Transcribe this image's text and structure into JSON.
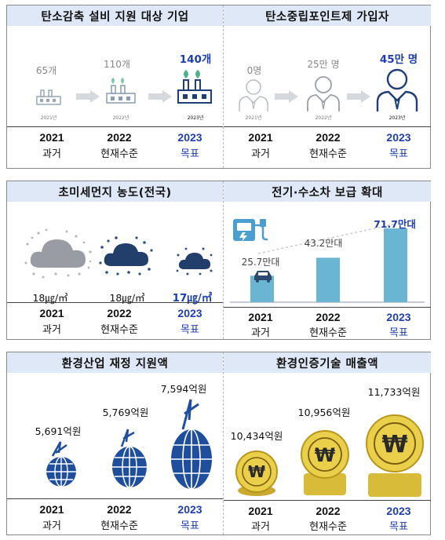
{
  "columns": [
    {
      "year": "2021",
      "sub": "과거"
    },
    {
      "year": "2022",
      "sub": "현재수준"
    },
    {
      "year": "2023",
      "sub": "목표"
    }
  ],
  "panels": {
    "facility": {
      "title": "탄소감축 설비 지원 대상 기업",
      "values": [
        "65개",
        "110개",
        "140개"
      ],
      "small_years": [
        "2021년",
        "2022년",
        "2023년"
      ]
    },
    "points": {
      "title": "탄소중립포인트제 가입자",
      "values": [
        "0명",
        "25만 명",
        "45만 명"
      ],
      "small_years": [
        "2021년",
        "2022년",
        "2023년"
      ]
    },
    "dust": {
      "title": "초미세먼지 농도(전국)",
      "values": [
        "18㎍/㎥",
        "18㎍/㎥",
        "17㎍/㎥"
      ]
    },
    "ev": {
      "title": "전기·수소차 보급 확대",
      "values": [
        "25.7만대",
        "43.2만대",
        "71.7만대"
      ]
    },
    "industry": {
      "title": "환경산업 재정 지원액",
      "values": [
        "5,691억원",
        "5,769억원",
        "7,594억원"
      ]
    },
    "cert": {
      "title": "환경인증기술 매출액",
      "values": [
        "10,434억원",
        "10,956억원",
        "11,733억원"
      ]
    }
  },
  "colors": {
    "header_bg": "#dfe8f6",
    "highlight": "#1f3fae",
    "bar": "#6ab6d2",
    "coin": "#e9cf4a",
    "globe": "#1f4e9c"
  }
}
